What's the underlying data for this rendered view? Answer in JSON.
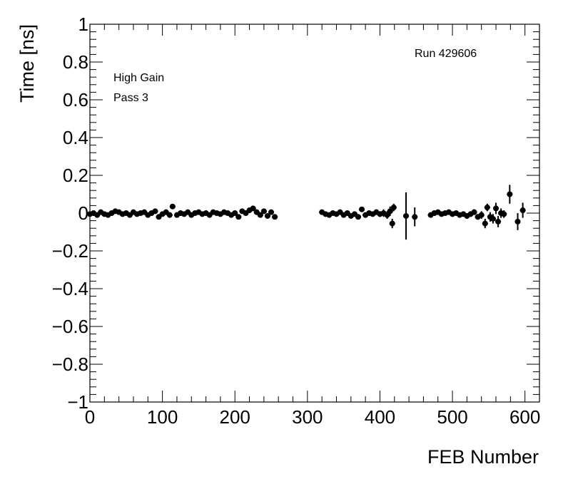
{
  "chart_data": {
    "type": "scatter",
    "xlabel": "FEB Number",
    "ylabel": "Time [ns]",
    "xlim": [
      0,
      620
    ],
    "ylim": [
      -1,
      1
    ],
    "x_ticks": [
      0,
      100,
      200,
      300,
      400,
      500,
      600
    ],
    "y_ticks": [
      -1,
      -0.8,
      -0.6,
      -0.4,
      -0.2,
      0,
      0.2,
      0.4,
      0.6,
      0.8,
      1
    ],
    "x_tick_labels": [
      "0",
      "100",
      "200",
      "300",
      "400",
      "500",
      "600"
    ],
    "y_tick_labels": [
      "−1",
      "−0.8",
      "−0.6",
      "−0.4",
      "−0.2",
      "0",
      "0.2",
      "0.4",
      "0.6",
      "0.8",
      "1"
    ],
    "annotations": [
      "Run 429606",
      "High Gain",
      "Pass 3"
    ],
    "grid": false,
    "series": [
      {
        "marker": "circle",
        "color": "#000000",
        "points": [
          {
            "x": 0,
            "y": -0.005,
            "err": 0.01
          },
          {
            "x": 5,
            "y": 0.0,
            "err": 0.01
          },
          {
            "x": 10,
            "y": -0.01,
            "err": 0.01
          },
          {
            "x": 15,
            "y": 0.005,
            "err": 0.01
          },
          {
            "x": 20,
            "y": -0.005,
            "err": 0.01
          },
          {
            "x": 25,
            "y": -0.01,
            "err": 0.01
          },
          {
            "x": 30,
            "y": 0.0,
            "err": 0.01
          },
          {
            "x": 35,
            "y": 0.01,
            "err": 0.01
          },
          {
            "x": 40,
            "y": 0.005,
            "err": 0.01
          },
          {
            "x": 45,
            "y": -0.005,
            "err": 0.01
          },
          {
            "x": 50,
            "y": 0.0,
            "err": 0.01
          },
          {
            "x": 55,
            "y": -0.01,
            "err": 0.01
          },
          {
            "x": 60,
            "y": 0.005,
            "err": 0.01
          },
          {
            "x": 65,
            "y": -0.005,
            "err": 0.01
          },
          {
            "x": 70,
            "y": 0.0,
            "err": 0.01
          },
          {
            "x": 75,
            "y": 0.005,
            "err": 0.01
          },
          {
            "x": 80,
            "y": -0.01,
            "err": 0.01
          },
          {
            "x": 85,
            "y": 0.0,
            "err": 0.01
          },
          {
            "x": 90,
            "y": 0.01,
            "err": 0.01
          },
          {
            "x": 95,
            "y": -0.02,
            "err": 0.01
          },
          {
            "x": 100,
            "y": -0.005,
            "err": 0.01
          },
          {
            "x": 105,
            "y": 0.005,
            "err": 0.01
          },
          {
            "x": 110,
            "y": -0.01,
            "err": 0.01
          },
          {
            "x": 114,
            "y": 0.035,
            "err": 0.01
          },
          {
            "x": 120,
            "y": -0.01,
            "err": 0.01
          },
          {
            "x": 125,
            "y": 0.0,
            "err": 0.01
          },
          {
            "x": 130,
            "y": -0.005,
            "err": 0.01
          },
          {
            "x": 135,
            "y": 0.005,
            "err": 0.01
          },
          {
            "x": 140,
            "y": -0.01,
            "err": 0.01
          },
          {
            "x": 145,
            "y": 0.0,
            "err": 0.01
          },
          {
            "x": 150,
            "y": 0.005,
            "err": 0.01
          },
          {
            "x": 155,
            "y": -0.005,
            "err": 0.01
          },
          {
            "x": 160,
            "y": 0.0,
            "err": 0.01
          },
          {
            "x": 165,
            "y": -0.01,
            "err": 0.01
          },
          {
            "x": 170,
            "y": 0.005,
            "err": 0.01
          },
          {
            "x": 175,
            "y": 0.0,
            "err": 0.01
          },
          {
            "x": 180,
            "y": -0.005,
            "err": 0.01
          },
          {
            "x": 185,
            "y": 0.005,
            "err": 0.01
          },
          {
            "x": 190,
            "y": 0.0,
            "err": 0.01
          },
          {
            "x": 195,
            "y": -0.01,
            "err": 0.01
          },
          {
            "x": 200,
            "y": 0.0,
            "err": 0.01
          },
          {
            "x": 205,
            "y": -0.02,
            "err": 0.01
          },
          {
            "x": 210,
            "y": 0.01,
            "err": 0.01
          },
          {
            "x": 215,
            "y": 0.0,
            "err": 0.01
          },
          {
            "x": 220,
            "y": 0.015,
            "err": 0.01
          },
          {
            "x": 225,
            "y": 0.025,
            "err": 0.01
          },
          {
            "x": 230,
            "y": 0.005,
            "err": 0.01
          },
          {
            "x": 235,
            "y": -0.01,
            "err": 0.01
          },
          {
            "x": 240,
            "y": 0.01,
            "err": 0.01
          },
          {
            "x": 245,
            "y": -0.015,
            "err": 0.01
          },
          {
            "x": 250,
            "y": 0.005,
            "err": 0.01
          },
          {
            "x": 255,
            "y": -0.02,
            "err": 0.01
          },
          {
            "x": 320,
            "y": 0.005,
            "err": 0.01
          },
          {
            "x": 325,
            "y": -0.005,
            "err": 0.01
          },
          {
            "x": 330,
            "y": -0.01,
            "err": 0.01
          },
          {
            "x": 335,
            "y": 0.0,
            "err": 0.01
          },
          {
            "x": 340,
            "y": -0.005,
            "err": 0.01
          },
          {
            "x": 345,
            "y": 0.005,
            "err": 0.01
          },
          {
            "x": 350,
            "y": -0.01,
            "err": 0.01
          },
          {
            "x": 355,
            "y": 0.0,
            "err": 0.01
          },
          {
            "x": 360,
            "y": -0.015,
            "err": 0.01
          },
          {
            "x": 365,
            "y": -0.005,
            "err": 0.01
          },
          {
            "x": 370,
            "y": -0.02,
            "err": 0.01
          },
          {
            "x": 375,
            "y": 0.02,
            "err": 0.01
          },
          {
            "x": 380,
            "y": -0.01,
            "err": 0.01
          },
          {
            "x": 385,
            "y": 0.0,
            "err": 0.01
          },
          {
            "x": 390,
            "y": -0.005,
            "err": 0.01
          },
          {
            "x": 395,
            "y": 0.005,
            "err": 0.015
          },
          {
            "x": 400,
            "y": -0.005,
            "err": 0.015
          },
          {
            "x": 405,
            "y": 0.0,
            "err": 0.02
          },
          {
            "x": 410,
            "y": -0.01,
            "err": 0.02
          },
          {
            "x": 414,
            "y": 0.01,
            "err": 0.025
          },
          {
            "x": 417,
            "y": -0.055,
            "err": 0.025
          },
          {
            "x": 419,
            "y": 0.03,
            "err": 0.02
          },
          {
            "x": 436,
            "y": -0.015,
            "err": 0.125
          },
          {
            "x": 448,
            "y": -0.02,
            "err": 0.05
          },
          {
            "x": 470,
            "y": -0.01,
            "err": 0.01
          },
          {
            "x": 475,
            "y": 0.0,
            "err": 0.01
          },
          {
            "x": 480,
            "y": 0.005,
            "err": 0.01
          },
          {
            "x": 485,
            "y": -0.005,
            "err": 0.01
          },
          {
            "x": 490,
            "y": 0.0,
            "err": 0.01
          },
          {
            "x": 495,
            "y": 0.005,
            "err": 0.01
          },
          {
            "x": 500,
            "y": -0.005,
            "err": 0.01
          },
          {
            "x": 505,
            "y": 0.0,
            "err": 0.01
          },
          {
            "x": 510,
            "y": -0.01,
            "err": 0.01
          },
          {
            "x": 515,
            "y": -0.005,
            "err": 0.01
          },
          {
            "x": 520,
            "y": -0.015,
            "err": 0.015
          },
          {
            "x": 525,
            "y": -0.005,
            "err": 0.015
          },
          {
            "x": 530,
            "y": 0.005,
            "err": 0.015
          },
          {
            "x": 535,
            "y": -0.02,
            "err": 0.015
          },
          {
            "x": 540,
            "y": -0.01,
            "err": 0.02
          },
          {
            "x": 545,
            "y": -0.055,
            "err": 0.025
          },
          {
            "x": 548,
            "y": 0.03,
            "err": 0.02
          },
          {
            "x": 552,
            "y": -0.02,
            "err": 0.025
          },
          {
            "x": 556,
            "y": -0.03,
            "err": 0.025
          },
          {
            "x": 560,
            "y": 0.025,
            "err": 0.03
          },
          {
            "x": 563,
            "y": -0.045,
            "err": 0.03
          },
          {
            "x": 567,
            "y": 0.0,
            "err": 0.025
          },
          {
            "x": 571,
            "y": -0.005,
            "err": 0.02
          },
          {
            "x": 579,
            "y": 0.1,
            "err": 0.05
          },
          {
            "x": 590,
            "y": -0.045,
            "err": 0.045
          },
          {
            "x": 597,
            "y": 0.015,
            "err": 0.04
          }
        ]
      }
    ]
  }
}
